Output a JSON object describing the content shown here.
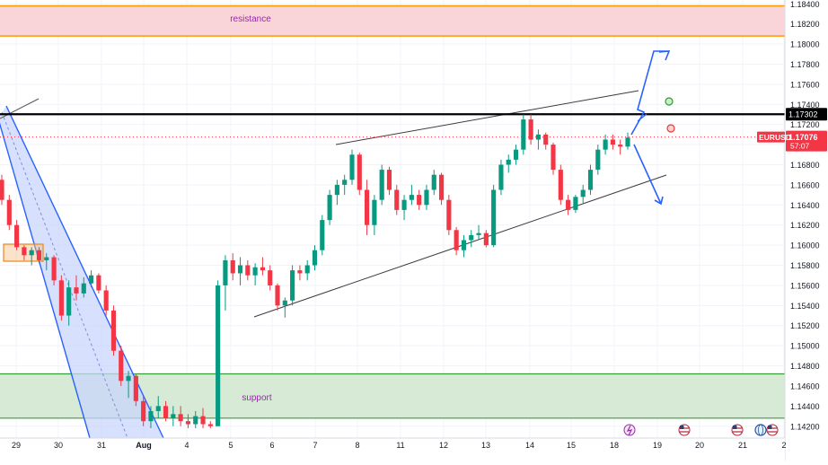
{
  "symbol": "EURUSD",
  "countdown": "57:07",
  "zones": {
    "resistance": {
      "label": "resistance",
      "from": 1.1808,
      "to": 1.1838
    },
    "support": {
      "label": "support",
      "from": 1.1428,
      "to": 1.1472
    }
  },
  "levels": {
    "key_level": 1.17302,
    "key_level_label": "1.17302",
    "last_price": 1.17076,
    "last_price_label": "1.17076"
  },
  "colors": {
    "up": "#089981",
    "down": "#f23645",
    "resistance_fill": "#f9d4d8",
    "resistance_border": "#ff9800",
    "support_fill": "#d6ead6",
    "support_border": "#3a9b3a",
    "channel": "#2962ff",
    "channel_fill": "#c9d6fb",
    "label_text": "#9c27b0"
  },
  "icons": [
    "flash-icon",
    "us-flag-icon",
    "us-flag-icon",
    "globe-icon",
    "us-flag-icon"
  ],
  "chart_data": {
    "type": "candlestick",
    "symbol": "EURUSD",
    "ylim": [
      1.1418,
      1.1842
    ],
    "y_ticks": [
      "1.14200",
      "1.14400",
      "1.14600",
      "1.14800",
      "1.15000",
      "1.15200",
      "1.15400",
      "1.15600",
      "1.15800",
      "1.16000",
      "1.16200",
      "1.16400",
      "1.16600",
      "1.16800",
      "1.17000",
      "1.17200",
      "1.17400",
      "1.17600",
      "1.17800",
      "1.18000",
      "1.18200",
      "1.18400"
    ],
    "x_ticks": [
      "29",
      "30",
      "31",
      "Aug",
      "4",
      "5",
      "6",
      "7",
      "8",
      "11",
      "12",
      "13",
      "14",
      "15",
      "18",
      "19",
      "20",
      "21",
      "2"
    ],
    "candles_ohlc": [
      [
        1.1665,
        1.167,
        1.164,
        1.1645
      ],
      [
        1.1645,
        1.165,
        1.1615,
        1.162
      ],
      [
        1.162,
        1.1625,
        1.1595,
        1.1598
      ],
      [
        1.1598,
        1.16,
        1.1585,
        1.159
      ],
      [
        1.159,
        1.1598,
        1.158,
        1.1595
      ],
      [
        1.1595,
        1.1598,
        1.1582,
        1.1585
      ],
      [
        1.1585,
        1.1592,
        1.1575,
        1.1588
      ],
      [
        1.1588,
        1.159,
        1.156,
        1.1565
      ],
      [
        1.1565,
        1.157,
        1.1525,
        1.153
      ],
      [
        1.153,
        1.1565,
        1.152,
        1.1558
      ],
      [
        1.1558,
        1.157,
        1.1545,
        1.1552
      ],
      [
        1.1552,
        1.1568,
        1.1548,
        1.1562
      ],
      [
        1.1562,
        1.1575,
        1.1558,
        1.157
      ],
      [
        1.157,
        1.1572,
        1.1552,
        1.1555
      ],
      [
        1.1555,
        1.156,
        1.153,
        1.1535
      ],
      [
        1.1535,
        1.154,
        1.149,
        1.1495
      ],
      [
        1.1495,
        1.15,
        1.146,
        1.1465
      ],
      [
        1.1465,
        1.1475,
        1.1448,
        1.147
      ],
      [
        1.147,
        1.1472,
        1.144,
        1.1445
      ],
      [
        1.1445,
        1.145,
        1.142,
        1.1425
      ],
      [
        1.1425,
        1.144,
        1.1418,
        1.1435
      ],
      [
        1.1435,
        1.145,
        1.1428,
        1.144
      ],
      [
        1.144,
        1.1445,
        1.1425,
        1.1428
      ],
      [
        1.1428,
        1.144,
        1.142,
        1.1432
      ],
      [
        1.1432,
        1.144,
        1.142,
        1.1425
      ],
      [
        1.1425,
        1.1432,
        1.1418,
        1.1422
      ],
      [
        1.1422,
        1.1435,
        1.1418,
        1.143
      ],
      [
        1.143,
        1.1438,
        1.1418,
        1.1422
      ],
      [
        1.1422,
        1.1425,
        1.1418,
        1.142
      ],
      [
        1.142,
        1.1565,
        1.142,
        1.156
      ],
      [
        1.156,
        1.159,
        1.1535,
        1.1585
      ],
      [
        1.1585,
        1.1592,
        1.1565,
        1.1572
      ],
      [
        1.1572,
        1.1588,
        1.156,
        1.158
      ],
      [
        1.158,
        1.1585,
        1.1565,
        1.157
      ],
      [
        1.157,
        1.1582,
        1.156,
        1.1578
      ],
      [
        1.1578,
        1.1588,
        1.157,
        1.1575
      ],
      [
        1.1575,
        1.158,
        1.1555,
        1.156
      ],
      [
        1.156,
        1.1562,
        1.1535,
        1.154
      ],
      [
        1.154,
        1.1548,
        1.1528,
        1.1545
      ],
      [
        1.1545,
        1.158,
        1.154,
        1.1575
      ],
      [
        1.1575,
        1.158,
        1.1565,
        1.1572
      ],
      [
        1.1572,
        1.1585,
        1.1565,
        1.158
      ],
      [
        1.158,
        1.16,
        1.1575,
        1.1595
      ],
      [
        1.1595,
        1.163,
        1.159,
        1.1625
      ],
      [
        1.1625,
        1.1655,
        1.162,
        1.165
      ],
      [
        1.165,
        1.1665,
        1.164,
        1.166
      ],
      [
        1.166,
        1.167,
        1.165,
        1.1665
      ],
      [
        1.1665,
        1.1695,
        1.166,
        1.169
      ],
      [
        1.169,
        1.1692,
        1.165,
        1.1655
      ],
      [
        1.1655,
        1.1665,
        1.161,
        1.162
      ],
      [
        1.162,
        1.165,
        1.161,
        1.1645
      ],
      [
        1.1645,
        1.168,
        1.164,
        1.1675
      ],
      [
        1.1675,
        1.1678,
        1.165,
        1.1655
      ],
      [
        1.1655,
        1.166,
        1.163,
        1.1635
      ],
      [
        1.1635,
        1.165,
        1.1625,
        1.1645
      ],
      [
        1.1645,
        1.166,
        1.164,
        1.165
      ],
      [
        1.165,
        1.1655,
        1.1635,
        1.164
      ],
      [
        1.164,
        1.166,
        1.1635,
        1.1655
      ],
      [
        1.1655,
        1.1675,
        1.165,
        1.167
      ],
      [
        1.167,
        1.1672,
        1.164,
        1.1645
      ],
      [
        1.1645,
        1.165,
        1.161,
        1.1615
      ],
      [
        1.1615,
        1.1618,
        1.159,
        1.1595
      ],
      [
        1.1595,
        1.161,
        1.1588,
        1.1605
      ],
      [
        1.1605,
        1.1615,
        1.1598,
        1.161
      ],
      [
        1.161,
        1.162,
        1.1605,
        1.1612
      ],
      [
        1.1612,
        1.1615,
        1.1598,
        1.16
      ],
      [
        1.16,
        1.166,
        1.1598,
        1.1655
      ],
      [
        1.1655,
        1.1685,
        1.165,
        1.168
      ],
      [
        1.168,
        1.169,
        1.1672,
        1.1685
      ],
      [
        1.1685,
        1.17,
        1.168,
        1.1695
      ],
      [
        1.1695,
        1.173,
        1.169,
        1.1725
      ],
      [
        1.1725,
        1.173,
        1.17,
        1.1705
      ],
      [
        1.1705,
        1.1715,
        1.1695,
        1.171
      ],
      [
        1.171,
        1.1712,
        1.1695,
        1.17
      ],
      [
        1.17,
        1.1702,
        1.167,
        1.1675
      ],
      [
        1.1675,
        1.168,
        1.164,
        1.1645
      ],
      [
        1.1645,
        1.165,
        1.163,
        1.1635
      ],
      [
        1.1635,
        1.165,
        1.1632,
        1.1648
      ],
      [
        1.1648,
        1.166,
        1.1642,
        1.1655
      ],
      [
        1.1655,
        1.168,
        1.165,
        1.1675
      ],
      [
        1.1675,
        1.17,
        1.167,
        1.1695
      ],
      [
        1.1695,
        1.171,
        1.169,
        1.1705
      ],
      [
        1.1705,
        1.171,
        1.1695,
        1.17
      ],
      [
        1.17,
        1.1705,
        1.169,
        1.1698
      ],
      [
        1.1698,
        1.1712,
        1.1695,
        1.1707
      ]
    ]
  }
}
